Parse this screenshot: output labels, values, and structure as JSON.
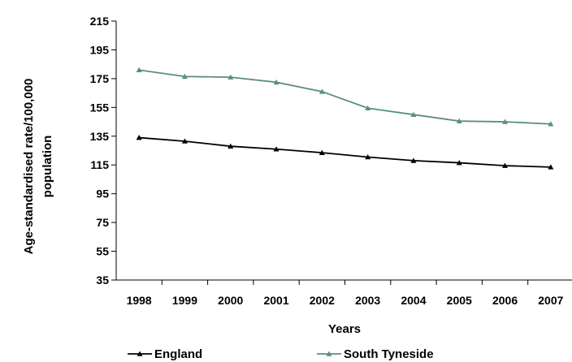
{
  "chart_data": {
    "type": "line",
    "title": "",
    "xlabel": "Years",
    "ylabel_lines": [
      "Age-standardised rate/100,000",
      "population"
    ],
    "x": [
      "1998",
      "1999",
      "2000",
      "2001",
      "2002",
      "2003",
      "2004",
      "2005",
      "2006",
      "2007"
    ],
    "ylim": [
      35,
      215
    ],
    "yticks": [
      "35",
      "55",
      "75",
      "95",
      "115",
      "135",
      "155",
      "175",
      "195",
      "215"
    ],
    "grid": false,
    "legend_position": "bottom",
    "series": [
      {
        "name": "England",
        "color": "#000000",
        "marker": "triangle",
        "values": [
          134,
          131.5,
          128,
          126,
          123.5,
          120.5,
          118,
          116.5,
          114.5,
          113.5
        ]
      },
      {
        "name": "South Tyneside",
        "color": "#5a8f7b",
        "marker": "triangle",
        "values": [
          181,
          176.5,
          176,
          172.5,
          166,
          154.5,
          150,
          145.5,
          145,
          143.5
        ]
      }
    ]
  }
}
